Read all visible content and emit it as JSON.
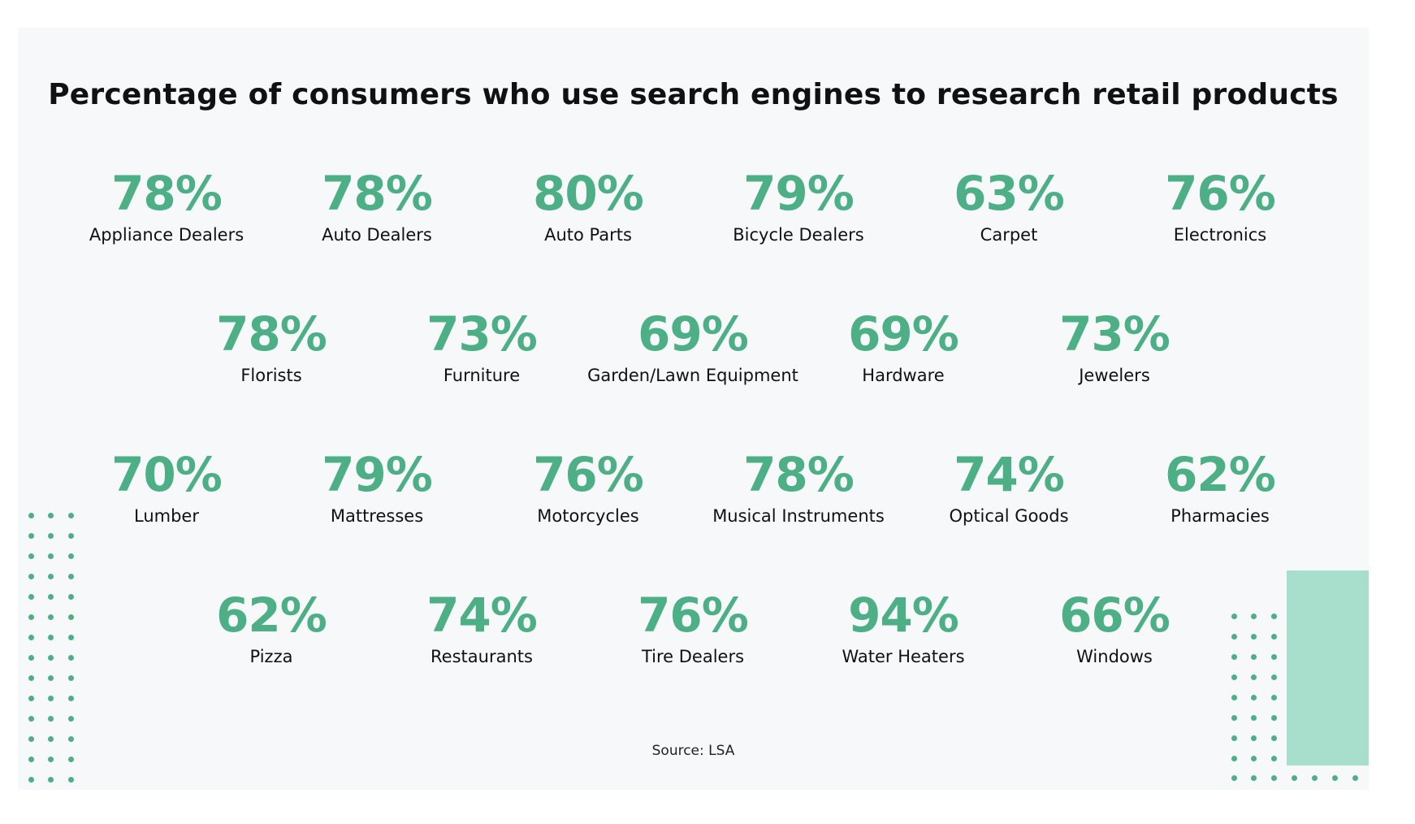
{
  "title": "Percentage of consumers who use search engines to research retail products",
  "source": "Source: LSA",
  "colors": {
    "accent": "#4daf86",
    "mint_block": "#a8dfcc",
    "card_background": "#f7f8fa",
    "text": "#111111"
  },
  "chart_data": {
    "type": "table",
    "title": "Percentage of consumers who use search engines to research retail products",
    "unit": "%",
    "categories": [
      "Appliance Dealers",
      "Auto Dealers",
      "Auto Parts",
      "Bicycle Dealers",
      "Carpet",
      "Electronics",
      "Florists",
      "Furniture",
      "Garden/Lawn Equipment",
      "Hardware",
      "Jewelers",
      "Lumber",
      "Mattresses",
      "Motorcycles",
      "Musical Instruments",
      "Optical Goods",
      "Pharmacies",
      "Pizza",
      "Restaurants",
      "Tire Dealers",
      "Water Heaters",
      "Windows"
    ],
    "values": [
      78,
      78,
      80,
      79,
      63,
      76,
      78,
      73,
      69,
      69,
      73,
      70,
      79,
      76,
      78,
      74,
      62,
      62,
      74,
      76,
      94,
      66
    ],
    "items": [
      {
        "label": "Appliance Dealers",
        "value": 78,
        "display": "78%"
      },
      {
        "label": "Auto Dealers",
        "value": 78,
        "display": "78%"
      },
      {
        "label": "Auto Parts",
        "value": 80,
        "display": "80%"
      },
      {
        "label": "Bicycle Dealers",
        "value": 79,
        "display": "79%"
      },
      {
        "label": "Carpet",
        "value": 63,
        "display": "63%"
      },
      {
        "label": "Electronics",
        "value": 76,
        "display": "76%"
      },
      {
        "label": "Florists",
        "value": 78,
        "display": "78%"
      },
      {
        "label": "Furniture",
        "value": 73,
        "display": "73%"
      },
      {
        "label": "Garden/Lawn Equipment",
        "value": 69,
        "display": "69%"
      },
      {
        "label": "Hardware",
        "value": 69,
        "display": "69%"
      },
      {
        "label": "Jewelers",
        "value": 73,
        "display": "73%"
      },
      {
        "label": "Lumber",
        "value": 70,
        "display": "70%"
      },
      {
        "label": "Mattresses",
        "value": 79,
        "display": "79%"
      },
      {
        "label": "Motorcycles",
        "value": 76,
        "display": "76%"
      },
      {
        "label": "Musical Instruments",
        "value": 78,
        "display": "78%"
      },
      {
        "label": "Optical Goods",
        "value": 74,
        "display": "74%"
      },
      {
        "label": "Pharmacies",
        "value": 62,
        "display": "62%"
      },
      {
        "label": "Pizza",
        "value": 62,
        "display": "62%"
      },
      {
        "label": "Restaurants",
        "value": 74,
        "display": "74%"
      },
      {
        "label": "Tire Dealers",
        "value": 76,
        "display": "76%"
      },
      {
        "label": "Water Heaters",
        "value": 94,
        "display": "94%"
      },
      {
        "label": "Windows",
        "value": 66,
        "display": "66%"
      }
    ]
  }
}
